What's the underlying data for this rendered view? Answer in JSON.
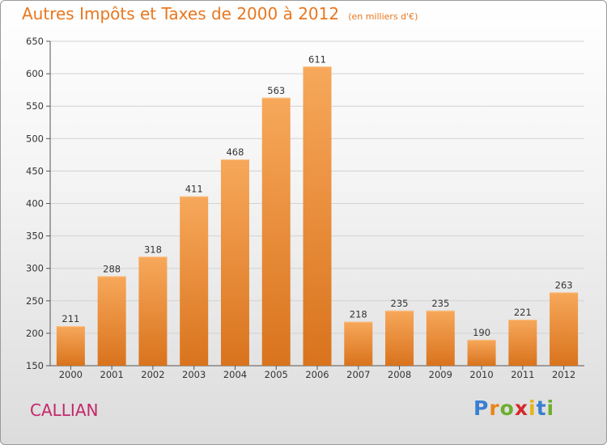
{
  "title": {
    "main": "Autres Impôts et Taxes de 2000 à 2012",
    "unit": "(en milliers d'€)"
  },
  "commune": "CALLIAN",
  "logo": {
    "text": "Proxiti",
    "letters": [
      "P",
      "r",
      "o",
      "x",
      "i",
      "t",
      "i"
    ],
    "colors": [
      "#3a7fd0",
      "#e8861a",
      "#6cae2e",
      "#d6282a",
      "#e8b21a",
      "#3a7fd0",
      "#6cae2e"
    ]
  },
  "colors": {
    "bar_top": "#f7a85a",
    "bar_bottom": "#d9731d",
    "title": "#e8771f",
    "commune": "#c3276b"
  },
  "chart_data": {
    "type": "bar",
    "title": "Autres Impôts et Taxes de 2000 à 2012",
    "subtitle": "(en milliers d'€)",
    "xlabel": "",
    "ylabel": "",
    "categories": [
      "2000",
      "2001",
      "2002",
      "2003",
      "2004",
      "2005",
      "2006",
      "2007",
      "2008",
      "2009",
      "2010",
      "2011",
      "2012"
    ],
    "values": [
      211,
      288,
      318,
      411,
      468,
      563,
      611,
      218,
      235,
      235,
      190,
      221,
      263
    ],
    "ylim": [
      150,
      650
    ],
    "yticks": [
      150,
      200,
      250,
      300,
      350,
      400,
      450,
      500,
      550,
      600,
      650
    ],
    "grid": true,
    "legend": "none"
  }
}
